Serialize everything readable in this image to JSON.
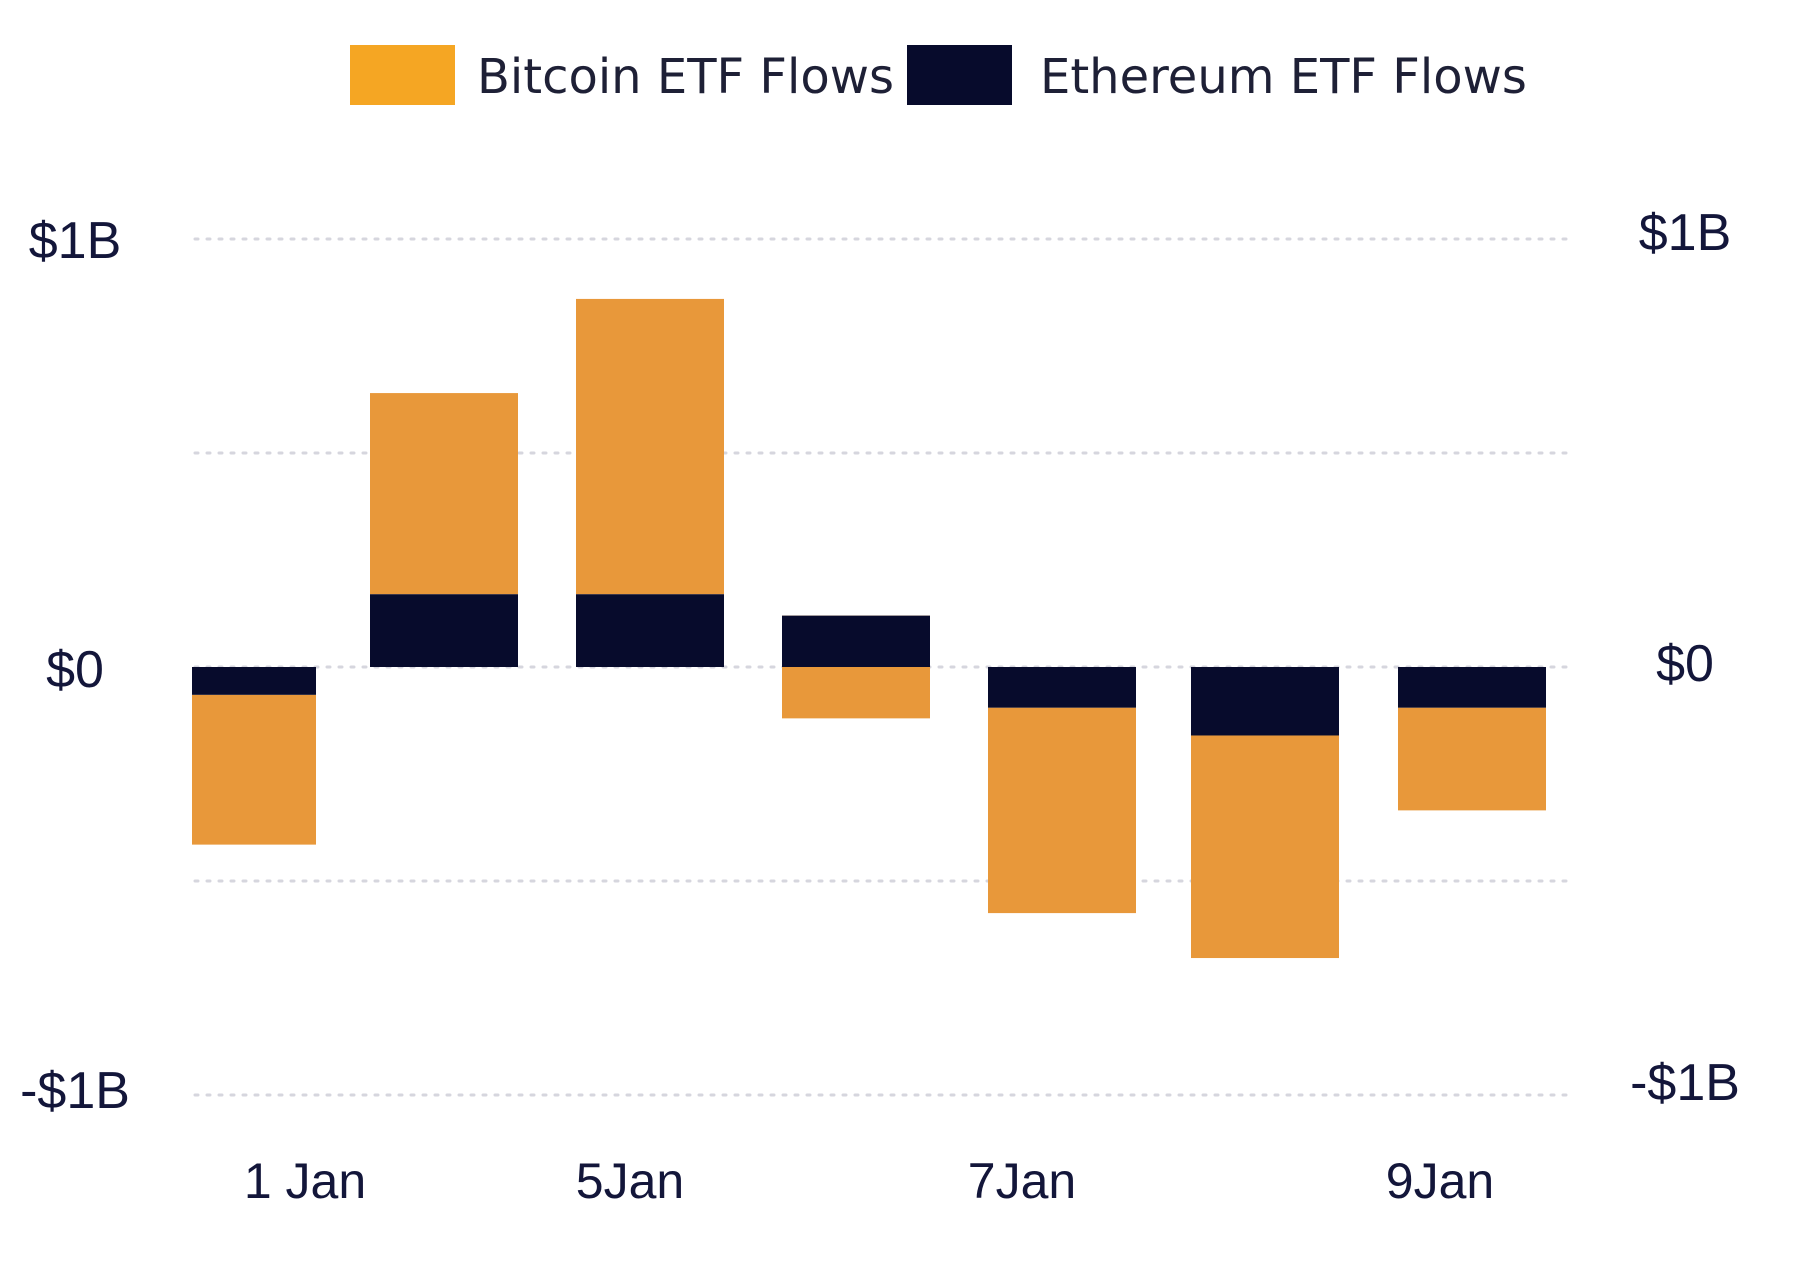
{
  "chart_data": {
    "type": "bar",
    "stacked": true,
    "categories": [
      "1 Jan",
      "",
      "5Jan",
      "",
      "7Jan",
      "",
      "9Jan"
    ],
    "x_tick_labels": [
      {
        "category_index": 0,
        "label": "1 Jan"
      },
      {
        "category_index": 2,
        "label": "5Jan"
      },
      {
        "category_index": 4,
        "label": "7Jan"
      },
      {
        "category_index": 6,
        "label": "9Jan"
      }
    ],
    "series": [
      {
        "name": "Bitcoin ETF Flows",
        "color": "#e8983a",
        "values": [
          -0.35,
          0.47,
          0.69,
          -0.24,
          -0.48,
          -0.52,
          -0.24
        ]
      },
      {
        "name": "Ethereum ETF Flows",
        "color": "#070b2c",
        "values": [
          -0.065,
          0.17,
          0.17,
          0.12,
          -0.095,
          -0.16,
          -0.095
        ]
      }
    ],
    "ylim": [
      -1,
      1
    ],
    "y_ticks": [
      {
        "value": 1,
        "label": "$1B"
      },
      {
        "value": 0,
        "label": "$0"
      },
      {
        "value": -1,
        "label": "-$1B"
      }
    ],
    "minor_gridlines": [
      0.5,
      -0.5
    ],
    "grid": true,
    "grid_style": "dotted",
    "dual_y_axis": true,
    "legend_position": "top-center",
    "legend": [
      {
        "label": "Bitcoin ETF Flows",
        "color": "#f5a623"
      },
      {
        "label": "Ethereum ETF Flows",
        "color": "#070b2c"
      }
    ]
  }
}
